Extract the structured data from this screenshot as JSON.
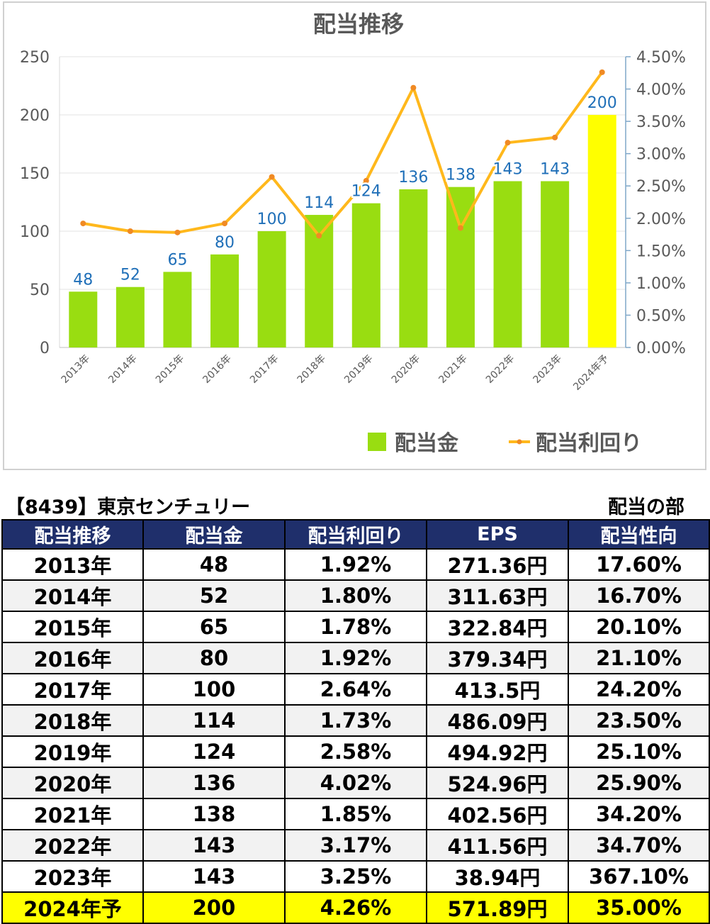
{
  "chart_data": {
    "type": "bar+line",
    "title": "配当推移",
    "categories": [
      "2013年",
      "2014年",
      "2015年",
      "2016年",
      "2017年",
      "2018年",
      "2019年",
      "2020年",
      "2021年",
      "2022年",
      "2023年",
      "2024年予"
    ],
    "series": [
      {
        "name": "配当金",
        "type": "bar",
        "axis": "left",
        "values": [
          48,
          52,
          65,
          80,
          100,
          114,
          124,
          136,
          138,
          143,
          143,
          200
        ],
        "colors": {
          "default": "#99DD11",
          "highlight": "#FFFF00"
        },
        "highlight_index": 11
      },
      {
        "name": "配当利回り",
        "type": "line",
        "axis": "right",
        "values": [
          1.92,
          1.8,
          1.78,
          1.92,
          2.64,
          1.73,
          2.58,
          4.02,
          1.85,
          3.17,
          3.25,
          4.26
        ],
        "unit": "%",
        "color": "#FFB81C",
        "marker_color": "#F08A24"
      }
    ],
    "y_left": {
      "min": 0,
      "max": 250,
      "ticks": [
        "0",
        "50",
        "100",
        "150",
        "200",
        "250"
      ]
    },
    "y_right": {
      "min": 0,
      "max": 4.5,
      "ticks": [
        "0.00%",
        "0.50%",
        "1.00%",
        "1.50%",
        "2.00%",
        "2.50%",
        "3.00%",
        "3.50%",
        "4.00%",
        "4.50%"
      ]
    },
    "data_labels": [
      "48",
      "52",
      "65",
      "80",
      "100",
      "114",
      "124",
      "136",
      "138",
      "143",
      "143",
      "200"
    ],
    "grid": true,
    "legend": "bottom-right"
  },
  "caption": {
    "left": "【8439】東京センチュリー",
    "right": "配当の部"
  },
  "table": {
    "headers": [
      "配当推移",
      "配当金",
      "配当利回り",
      "EPS",
      "配当性向"
    ],
    "rows": [
      [
        "2013年",
        "48",
        "1.92%",
        "271.36円",
        "17.60%"
      ],
      [
        "2014年",
        "52",
        "1.80%",
        "311.63円",
        "16.70%"
      ],
      [
        "2015年",
        "65",
        "1.78%",
        "322.84円",
        "20.10%"
      ],
      [
        "2016年",
        "80",
        "1.92%",
        "379.34円",
        "21.10%"
      ],
      [
        "2017年",
        "100",
        "2.64%",
        "413.5円",
        "24.20%"
      ],
      [
        "2018年",
        "114",
        "1.73%",
        "486.09円",
        "23.50%"
      ],
      [
        "2019年",
        "124",
        "2.58%",
        "494.92円",
        "25.10%"
      ],
      [
        "2020年",
        "136",
        "4.02%",
        "524.96円",
        "25.90%"
      ],
      [
        "2021年",
        "138",
        "1.85%",
        "402.56円",
        "34.20%"
      ],
      [
        "2022年",
        "143",
        "3.17%",
        "411.56円",
        "34.70%"
      ],
      [
        "2023年",
        "143",
        "3.25%",
        "38.94円",
        "367.10%"
      ],
      [
        "2024年予",
        "200",
        "4.26%",
        "571.89円",
        "35.00%"
      ]
    ],
    "highlight_row": 11,
    "header_color": "#1F2F6B",
    "highlight_color": "#FFFF00"
  }
}
